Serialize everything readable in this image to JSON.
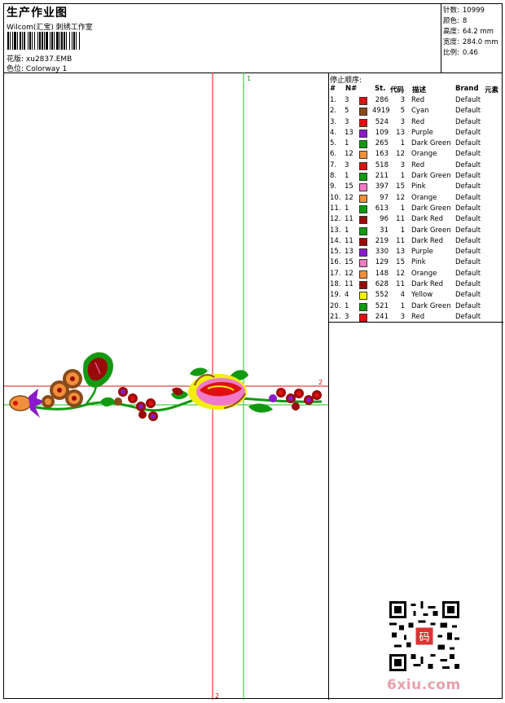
{
  "header": {
    "title": "生产作业图",
    "company": "Wilcom(汇宝) 刺绣工作室",
    "file_label": "花版:",
    "file_value": "xu2837.EMB",
    "colorway_label": "色位:",
    "colorway_value": "Colorway 1"
  },
  "info": [
    {
      "label": "针数:",
      "value": "10999"
    },
    {
      "label": "颜色:",
      "value": "8"
    },
    {
      "label": "高度:",
      "value": "64.2 mm"
    },
    {
      "label": "宽度:",
      "value": "284.0 mm"
    },
    {
      "label": "比例:",
      "value": "0.46"
    }
  ],
  "legend": {
    "title": "停止顺序:",
    "headers": {
      "num": "#",
      "n": "N#",
      "st": "St.",
      "code": "代码",
      "desc": "描述",
      "brand": "Brand",
      "element": "元素"
    },
    "rows": [
      {
        "num": "1.",
        "n": "3",
        "st": "286",
        "code": "3",
        "desc": "Red",
        "brand": "Default",
        "color": "#e01010"
      },
      {
        "num": "2.",
        "n": "5",
        "st": "4919",
        "code": "5",
        "desc": "Cyan",
        "brand": "Default",
        "color": "#8a4a1a"
      },
      {
        "num": "3.",
        "n": "3",
        "st": "524",
        "code": "3",
        "desc": "Red",
        "brand": "Default",
        "color": "#e01010"
      },
      {
        "num": "4.",
        "n": "13",
        "st": "109",
        "code": "13",
        "desc": "Purple",
        "brand": "Default",
        "color": "#8a1acb"
      },
      {
        "num": "5.",
        "n": "1",
        "st": "265",
        "code": "1",
        "desc": "Dark Green",
        "brand": "Default",
        "color": "#119a11"
      },
      {
        "num": "6.",
        "n": "12",
        "st": "163",
        "code": "12",
        "desc": "Orange",
        "brand": "Default",
        "color": "#f0903a"
      },
      {
        "num": "7.",
        "n": "3",
        "st": "518",
        "code": "3",
        "desc": "Red",
        "brand": "Default",
        "color": "#e01010"
      },
      {
        "num": "8.",
        "n": "1",
        "st": "211",
        "code": "1",
        "desc": "Dark Green",
        "brand": "Default",
        "color": "#119a11"
      },
      {
        "num": "9.",
        "n": "15",
        "st": "397",
        "code": "15",
        "desc": "Pink",
        "brand": "Default",
        "color": "#f07ac8"
      },
      {
        "num": "10.",
        "n": "12",
        "st": "97",
        "code": "12",
        "desc": "Orange",
        "brand": "Default",
        "color": "#f0903a"
      },
      {
        "num": "11.",
        "n": "1",
        "st": "613",
        "code": "1",
        "desc": "Dark Green",
        "brand": "Default",
        "color": "#119a11"
      },
      {
        "num": "12.",
        "n": "11",
        "st": "96",
        "code": "11",
        "desc": "Dark Red",
        "brand": "Default",
        "color": "#9a0a0a"
      },
      {
        "num": "13.",
        "n": "1",
        "st": "31",
        "code": "1",
        "desc": "Dark Green",
        "brand": "Default",
        "color": "#119a11"
      },
      {
        "num": "14.",
        "n": "11",
        "st": "219",
        "code": "11",
        "desc": "Dark Red",
        "brand": "Default",
        "color": "#9a0a0a"
      },
      {
        "num": "15.",
        "n": "13",
        "st": "330",
        "code": "13",
        "desc": "Purple",
        "brand": "Default",
        "color": "#8a1acb"
      },
      {
        "num": "16.",
        "n": "15",
        "st": "129",
        "code": "15",
        "desc": "Pink",
        "brand": "Default",
        "color": "#f07ac8"
      },
      {
        "num": "17.",
        "n": "12",
        "st": "148",
        "code": "12",
        "desc": "Orange",
        "brand": "Default",
        "color": "#f0903a"
      },
      {
        "num": "18.",
        "n": "11",
        "st": "628",
        "code": "11",
        "desc": "Dark Red",
        "brand": "Default",
        "color": "#9a0a0a"
      },
      {
        "num": "19.",
        "n": "4",
        "st": "552",
        "code": "4",
        "desc": "Yellow",
        "brand": "Default",
        "color": "#f2ee10"
      },
      {
        "num": "20.",
        "n": "1",
        "st": "521",
        "code": "1",
        "desc": "Dark Green",
        "brand": "Default",
        "color": "#119a11"
      },
      {
        "num": "21.",
        "n": "3",
        "st": "241",
        "code": "3",
        "desc": "Red",
        "brand": "Default",
        "color": "#e01010"
      }
    ]
  },
  "guides": {
    "vertical_red_label": "2",
    "vertical_green_label": "1",
    "horizontal_red_label": "2"
  },
  "watermark": "6xiu.com",
  "qr_badge": "码"
}
